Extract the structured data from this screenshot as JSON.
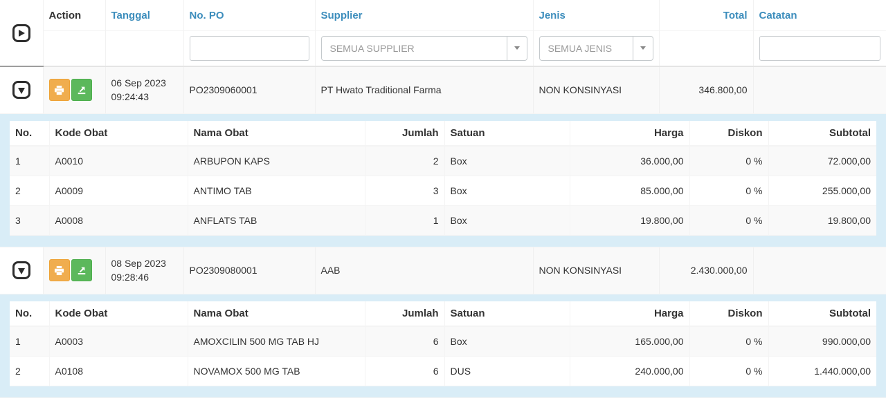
{
  "colors": {
    "header_link_blue": "#3c8dbc",
    "child_row_background": "#d9edf7",
    "stripe_gray": "#f9f9f9",
    "print_button_orange": "#f0ad4e",
    "export_button_green": "#5cb85c"
  },
  "header": {
    "columns": [
      {
        "key": "action",
        "label": "Action",
        "sortable": false,
        "align": "left"
      },
      {
        "key": "tanggal",
        "label": "Tanggal",
        "sortable": true,
        "align": "left"
      },
      {
        "key": "po",
        "label": "No. PO",
        "sortable": true,
        "align": "left"
      },
      {
        "key": "supplier",
        "label": "Supplier",
        "sortable": true,
        "align": "left"
      },
      {
        "key": "jenis",
        "label": "Jenis",
        "sortable": true,
        "align": "left"
      },
      {
        "key": "total",
        "label": "Total",
        "sortable": true,
        "align": "right"
      },
      {
        "key": "catatan",
        "label": "Catatan",
        "sortable": true,
        "align": "left"
      }
    ]
  },
  "filters": {
    "po_value": "",
    "supplier_selected": "SEMUA SUPPLIER",
    "jenis_selected": "SEMUA JENIS",
    "catatan_value": ""
  },
  "detail_columns": [
    {
      "label": "No.",
      "align": "left"
    },
    {
      "label": "Kode Obat",
      "align": "left"
    },
    {
      "label": "Nama Obat",
      "align": "left"
    },
    {
      "label": "Jumlah",
      "align": "right"
    },
    {
      "label": "Satuan",
      "align": "left"
    },
    {
      "label": "Harga",
      "align": "right"
    },
    {
      "label": "Diskon",
      "align": "right"
    },
    {
      "label": "Subtotal",
      "align": "right"
    }
  ],
  "orders": [
    {
      "date": "06 Sep 2023",
      "time": "09:24:43",
      "po": "PO2309060001",
      "supplier": "PT Hwato Traditional Farma",
      "jenis": "NON KONSINYASI",
      "total": "346.800,00",
      "catatan": "",
      "expanded": true,
      "items": [
        {
          "no": "1",
          "kode": "A0010",
          "nama": "ARBUPON KAPS",
          "jumlah": "2",
          "satuan": "Box",
          "harga": "36.000,00",
          "diskon": "0 %",
          "subtotal": "72.000,00"
        },
        {
          "no": "2",
          "kode": "A0009",
          "nama": "ANTIMO TAB",
          "jumlah": "3",
          "satuan": "Box",
          "harga": "85.000,00",
          "diskon": "0 %",
          "subtotal": "255.000,00"
        },
        {
          "no": "3",
          "kode": "A0008",
          "nama": "ANFLATS TAB",
          "jumlah": "1",
          "satuan": "Box",
          "harga": "19.800,00",
          "diskon": "0 %",
          "subtotal": "19.800,00"
        }
      ]
    },
    {
      "date": "08 Sep 2023",
      "time": "09:28:46",
      "po": "PO2309080001",
      "supplier": "AAB",
      "jenis": "NON KONSINYASI",
      "total": "2.430.000,00",
      "catatan": "",
      "expanded": true,
      "items": [
        {
          "no": "1",
          "kode": "A0003",
          "nama": "AMOXCILIN 500 MG TAB HJ",
          "jumlah": "6",
          "satuan": "Box",
          "harga": "165.000,00",
          "diskon": "0 %",
          "subtotal": "990.000,00"
        },
        {
          "no": "2",
          "kode": "A0108",
          "nama": "NOVAMOX 500 MG TAB",
          "jumlah": "6",
          "satuan": "DUS",
          "harga": "240.000,00",
          "diskon": "0 %",
          "subtotal": "1.440.000,00"
        }
      ]
    }
  ]
}
